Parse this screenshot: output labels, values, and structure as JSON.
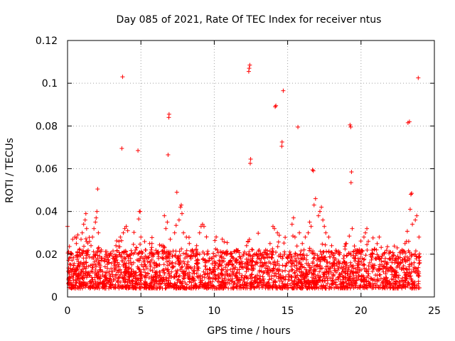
{
  "chart_data": {
    "type": "scatter",
    "title": "Day 085 of 2021, Rate Of TEC Index for receiver ntus",
    "xlabel": "GPS time / hours",
    "ylabel": "ROTI / TECUs",
    "xlim": [
      0,
      25
    ],
    "ylim": [
      0,
      0.12
    ],
    "x_ticks": [
      0,
      5,
      10,
      15,
      20,
      25
    ],
    "y_ticks": [
      0,
      0.02,
      0.04,
      0.06,
      0.08,
      0.1,
      0.12
    ],
    "x_tick_labels": [
      "0",
      "5",
      "10",
      "15",
      "20",
      "25"
    ],
    "y_tick_labels": [
      "0",
      "0.02",
      "0.04",
      "0.06",
      "0.08",
      "0.1",
      "0.12"
    ],
    "grid": true,
    "marker": "+",
    "series": [
      {
        "name": "ROTI",
        "color": "#ff0000",
        "points": [
          [
            0.0,
            0.033
          ],
          [
            0.05,
            0.012
          ],
          [
            0.1,
            0.009
          ],
          [
            0.2,
            0.015
          ],
          [
            0.3,
            0.02
          ],
          [
            0.35,
            0.027
          ],
          [
            0.5,
            0.028
          ],
          [
            0.6,
            0.025
          ],
          [
            0.7,
            0.029
          ],
          [
            0.8,
            0.022
          ],
          [
            1.0,
            0.03
          ],
          [
            1.1,
            0.034
          ],
          [
            1.2,
            0.036
          ],
          [
            1.25,
            0.039
          ],
          [
            1.3,
            0.032
          ],
          [
            1.5,
            0.026
          ],
          [
            1.6,
            0.024
          ],
          [
            1.7,
            0.028
          ],
          [
            1.8,
            0.032
          ],
          [
            1.9,
            0.035
          ],
          [
            1.95,
            0.037
          ],
          [
            2.0,
            0.04
          ],
          [
            2.05,
            0.0505
          ],
          [
            2.1,
            0.03
          ],
          [
            2.3,
            0.022
          ],
          [
            2.5,
            0.018
          ],
          [
            2.8,
            0.016
          ],
          [
            3.1,
            0.019
          ],
          [
            3.3,
            0.024
          ],
          [
            3.5,
            0.026
          ],
          [
            3.6,
            0.028
          ],
          [
            3.7,
            0.0695
          ],
          [
            3.75,
            0.103
          ],
          [
            3.8,
            0.03
          ],
          [
            3.9,
            0.032
          ],
          [
            4.0,
            0.033
          ],
          [
            4.1,
            0.031
          ],
          [
            4.3,
            0.018
          ],
          [
            4.5,
            0.016
          ],
          [
            4.7,
            0.023
          ],
          [
            4.8,
            0.0685
          ],
          [
            4.85,
            0.0365
          ],
          [
            4.9,
            0.04
          ],
          [
            4.95,
            0.04
          ],
          [
            5.0,
            0.028
          ],
          [
            5.3,
            0.022
          ],
          [
            5.6,
            0.025
          ],
          [
            5.7,
            0.022
          ],
          [
            5.8,
            0.02
          ],
          [
            6.2,
            0.018
          ],
          [
            6.5,
            0.024
          ],
          [
            6.6,
            0.038
          ],
          [
            6.7,
            0.032
          ],
          [
            6.8,
            0.035
          ],
          [
            6.85,
            0.0665
          ],
          [
            6.9,
            0.084
          ],
          [
            6.92,
            0.0855
          ],
          [
            7.0,
            0.027
          ],
          [
            7.3,
            0.03
          ],
          [
            7.4,
            0.0335
          ],
          [
            7.45,
            0.049
          ],
          [
            7.6,
            0.036
          ],
          [
            7.7,
            0.042
          ],
          [
            7.75,
            0.043
          ],
          [
            7.8,
            0.039
          ],
          [
            7.9,
            0.03
          ],
          [
            8.1,
            0.028
          ],
          [
            8.3,
            0.025
          ],
          [
            8.5,
            0.022
          ],
          [
            8.8,
            0.024
          ],
          [
            9.0,
            0.03
          ],
          [
            9.1,
            0.033
          ],
          [
            9.2,
            0.034
          ],
          [
            9.3,
            0.033
          ],
          [
            9.5,
            0.02
          ],
          [
            9.8,
            0.018
          ],
          [
            10.2,
            0.022
          ],
          [
            10.5,
            0.019
          ],
          [
            10.8,
            0.021
          ],
          [
            11.0,
            0.016
          ],
          [
            11.3,
            0.018
          ],
          [
            11.5,
            0.022
          ],
          [
            11.8,
            0.018
          ],
          [
            12.0,
            0.02
          ],
          [
            12.2,
            0.024
          ],
          [
            12.3,
            0.026
          ],
          [
            12.35,
            0.1055
          ],
          [
            12.38,
            0.107
          ],
          [
            12.42,
            0.1085
          ],
          [
            12.45,
            0.0625
          ],
          [
            12.48,
            0.0645
          ],
          [
            12.6,
            0.022
          ],
          [
            12.9,
            0.02
          ],
          [
            13.2,
            0.018
          ],
          [
            13.5,
            0.022
          ],
          [
            13.8,
            0.025
          ],
          [
            14.0,
            0.033
          ],
          [
            14.1,
            0.032
          ],
          [
            14.15,
            0.089
          ],
          [
            14.2,
            0.0895
          ],
          [
            14.3,
            0.03
          ],
          [
            14.5,
            0.02
          ],
          [
            14.6,
            0.0705
          ],
          [
            14.62,
            0.0725
          ],
          [
            14.7,
            0.0965
          ],
          [
            14.8,
            0.02
          ],
          [
            15.0,
            0.018
          ],
          [
            15.2,
            0.02
          ],
          [
            15.3,
            0.034
          ],
          [
            15.4,
            0.037
          ],
          [
            15.5,
            0.028
          ],
          [
            15.7,
            0.0795
          ],
          [
            15.8,
            0.03
          ],
          [
            16.0,
            0.025
          ],
          [
            16.2,
            0.028
          ],
          [
            16.4,
            0.03
          ],
          [
            16.5,
            0.035
          ],
          [
            16.6,
            0.033
          ],
          [
            16.7,
            0.0595
          ],
          [
            16.75,
            0.059
          ],
          [
            16.8,
            0.043
          ],
          [
            16.9,
            0.046
          ],
          [
            17.1,
            0.038
          ],
          [
            17.2,
            0.04
          ],
          [
            17.3,
            0.042
          ],
          [
            17.4,
            0.036
          ],
          [
            17.5,
            0.033
          ],
          [
            17.6,
            0.03
          ],
          [
            17.8,
            0.028
          ],
          [
            18.0,
            0.024
          ],
          [
            18.5,
            0.02
          ],
          [
            18.8,
            0.018
          ],
          [
            19.0,
            0.025
          ],
          [
            19.2,
            0.0285
          ],
          [
            19.25,
            0.0805
          ],
          [
            19.3,
            0.0795
          ],
          [
            19.32,
            0.0535
          ],
          [
            19.35,
            0.0585
          ],
          [
            19.4,
            0.032
          ],
          [
            19.6,
            0.022
          ],
          [
            19.8,
            0.018
          ],
          [
            20.0,
            0.02
          ],
          [
            20.2,
            0.028
          ],
          [
            20.3,
            0.03
          ],
          [
            20.4,
            0.032
          ],
          [
            20.5,
            0.026
          ],
          [
            20.8,
            0.02
          ],
          [
            21.0,
            0.018
          ],
          [
            21.5,
            0.02
          ],
          [
            21.8,
            0.016
          ],
          [
            22.0,
            0.014
          ],
          [
            22.3,
            0.016
          ],
          [
            22.5,
            0.018
          ],
          [
            22.8,
            0.022
          ],
          [
            23.0,
            0.025
          ],
          [
            23.1,
            0.026
          ],
          [
            23.2,
            0.0815
          ],
          [
            23.3,
            0.082
          ],
          [
            23.35,
            0.041
          ],
          [
            23.4,
            0.048
          ],
          [
            23.45,
            0.0485
          ],
          [
            23.5,
            0.034
          ],
          [
            23.7,
            0.036
          ],
          [
            23.8,
            0.038
          ],
          [
            23.9,
            0.1025
          ],
          [
            23.95,
            0.028
          ],
          [
            24.0,
            0.016
          ]
        ]
      }
    ]
  }
}
